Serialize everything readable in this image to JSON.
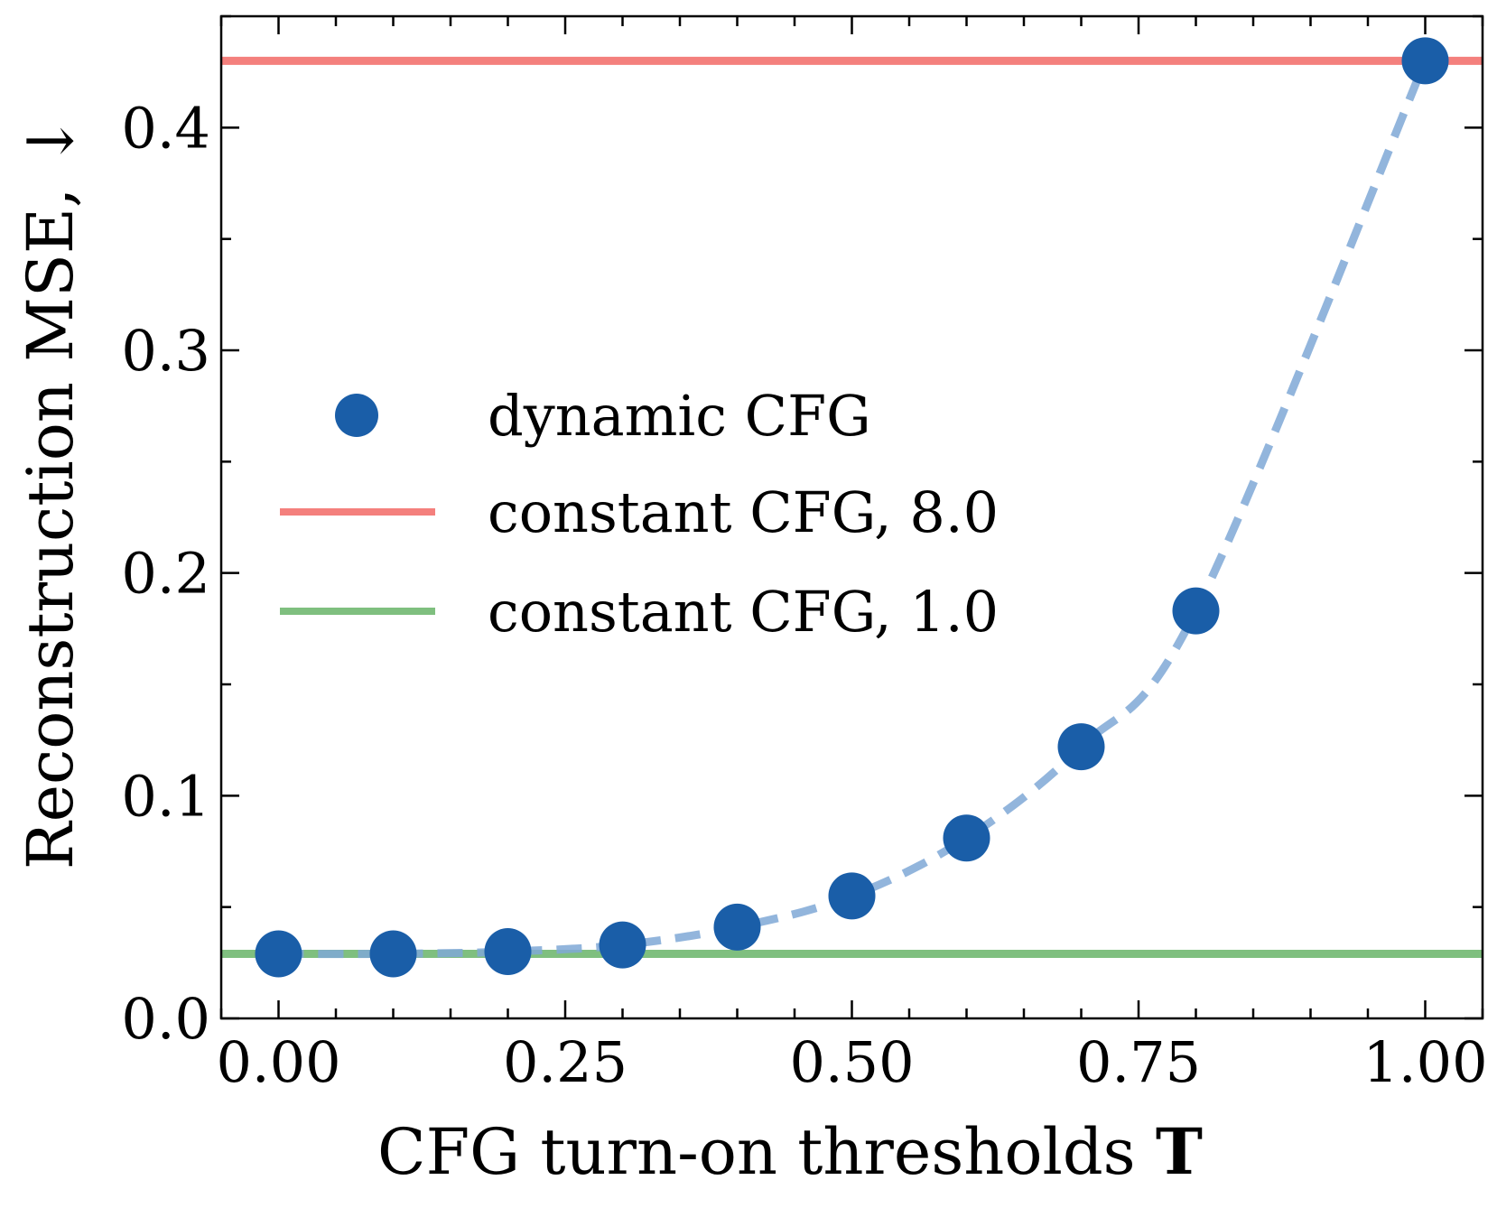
{
  "chart_data": {
    "type": "line",
    "title": "",
    "xlabel": "CFG turn-on thresholds",
    "xlabel_symbol": "T",
    "ylabel": "Reconstruction MSE, ↓",
    "xlim": [
      -0.05,
      1.05
    ],
    "ylim": [
      0.0,
      0.45
    ],
    "xticks": [
      0.0,
      0.25,
      0.5,
      0.75,
      1.0
    ],
    "xtick_labels": [
      "0.00",
      "0.25",
      "0.50",
      "0.75",
      "1.00"
    ],
    "yticks": [
      0.0,
      0.1,
      0.2,
      0.3,
      0.4
    ],
    "ytick_labels": [
      "0.0",
      "0.1",
      "0.2",
      "0.3",
      "0.4"
    ],
    "grid": false,
    "legend_position": "center-left",
    "series": [
      {
        "name": "dynamic CFG",
        "kind": "scatter-dashed",
        "color": "#1a5ea8",
        "line_color": "#7fa8d6",
        "x": [
          0.0,
          0.1,
          0.2,
          0.3,
          0.4,
          0.5,
          0.6,
          0.7,
          0.8,
          1.0
        ],
        "y": [
          0.029,
          0.029,
          0.03,
          0.033,
          0.041,
          0.055,
          0.081,
          0.122,
          0.183,
          0.43
        ]
      },
      {
        "name": "constant CFG, 8.0",
        "kind": "hline",
        "color": "#f4807d",
        "y": 0.43
      },
      {
        "name": "constant CFG, 1.0",
        "kind": "hline",
        "color": "#7fbf7f",
        "y": 0.029
      }
    ]
  }
}
